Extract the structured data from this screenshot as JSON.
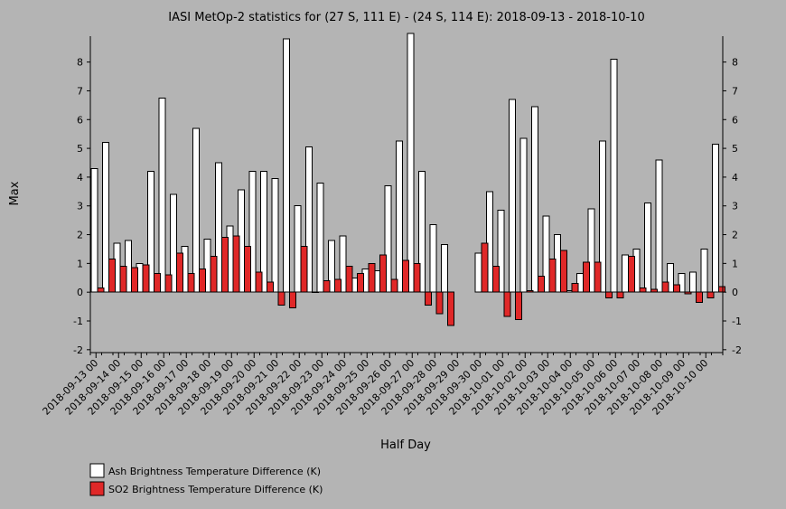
{
  "chart_data": {
    "type": "bar",
    "title": "IASI MetOp-2 statistics for (27 S, 111 E) - (24 S, 114 E): 2018-09-13 - 2018-10-10",
    "xlabel": "Half Day",
    "ylabel": "Max",
    "ylim": [
      -2.1,
      8.9
    ],
    "yticks": [
      -2,
      -1,
      0,
      1,
      2,
      3,
      4,
      5,
      6,
      7,
      8
    ],
    "grid": false,
    "legend": "bottom-left",
    "tick_labels": [
      "2018-09-13 00",
      "2018-09-14 00",
      "2018-09-15 00",
      "2018-09-16 00",
      "2018-09-17 00",
      "2018-09-18 00",
      "2018-09-19 00",
      "2018-09-20 00",
      "2018-09-21 00",
      "2018-09-22 00",
      "2018-09-23 00",
      "2018-09-24 00",
      "2018-09-25 00",
      "2018-09-26 00",
      "2018-09-27 00",
      "2018-09-28 00",
      "2018-09-29 00",
      "2018-09-30 00",
      "2018-10-01 00",
      "2018-10-02 00",
      "2018-10-03 00",
      "2018-10-04 00",
      "2018-10-05 00",
      "2018-10-06 00",
      "2018-10-07 00",
      "2018-10-08 00",
      "2018-10-09 00",
      "2018-10-10 00"
    ],
    "series": [
      {
        "name": "Ash Brightness Temperature Difference (K)",
        "color": "#ffffff",
        "values": [
          4.3,
          5.2,
          1.7,
          1.8,
          1.0,
          4.2,
          6.75,
          3.4,
          1.6,
          5.7,
          1.85,
          4.5,
          2.3,
          3.55,
          4.2,
          4.2,
          3.95,
          8.8,
          3.0,
          5.05,
          3.8,
          1.8,
          1.95,
          0.5,
          0.8,
          0.75,
          3.7,
          5.25,
          9.0,
          4.2,
          2.35,
          1.65,
          null,
          null,
          1.35,
          3.5,
          2.85,
          6.7,
          5.35,
          6.45,
          2.65,
          2.0,
          0.05,
          0.65,
          2.9,
          5.25,
          8.1,
          1.3,
          1.5,
          3.1,
          4.6,
          1.0,
          0.65,
          0.7,
          1.5,
          5.15
        ]
      },
      {
        "name": "SO2 Brightness Temperature Difference (K)",
        "color": "#e02828",
        "values": [
          0.15,
          1.15,
          0.9,
          0.85,
          0.95,
          0.65,
          0.6,
          1.35,
          0.65,
          0.8,
          1.25,
          1.9,
          1.95,
          1.6,
          0.7,
          0.35,
          -0.45,
          -0.55,
          1.6,
          0.0,
          0.4,
          0.45,
          0.9,
          0.65,
          1.0,
          1.3,
          0.45,
          1.1,
          1.0,
          -0.45,
          -0.75,
          -1.15,
          null,
          null,
          1.7,
          0.9,
          -0.85,
          -0.95,
          0.05,
          0.55,
          1.15,
          1.45,
          0.3,
          1.05,
          1.05,
          -0.2,
          -0.2,
          1.25,
          0.15,
          0.1,
          0.35,
          0.25,
          -0.05,
          -0.35,
          -0.2,
          0.2
        ]
      }
    ]
  }
}
